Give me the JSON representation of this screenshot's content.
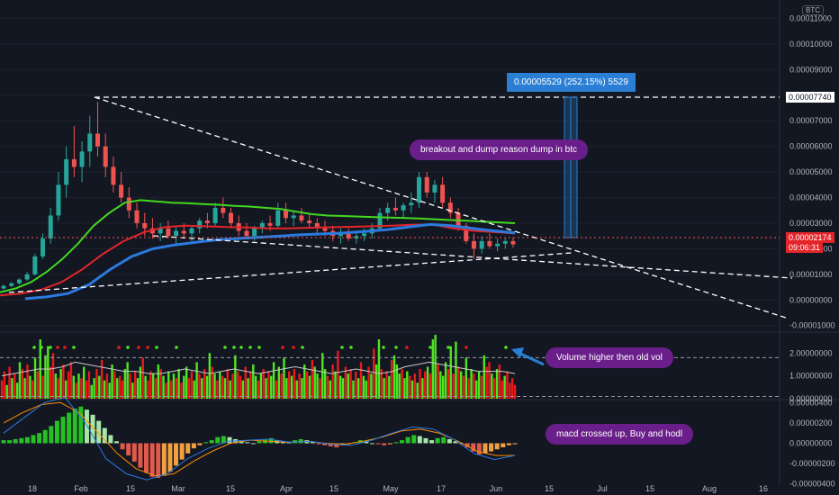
{
  "header": {
    "currency_badge": "BTC"
  },
  "price_axis": {
    "ticks": [
      "0.00011000",
      "0.00010000",
      "0.00009000",
      "0.00008000",
      "0.00007000",
      "0.00006000",
      "0.00005000",
      "0.00004000",
      "0.00003000",
      "0.00002000",
      "0.00001000",
      "0.00000000",
      "-0.00001000"
    ],
    "target_label": "0.00007740",
    "current_price": "0.00002174",
    "countdown": "09:06:31"
  },
  "volume_axis": {
    "ticks": [
      "2.00000000",
      "1.00000000",
      "0.00000000"
    ]
  },
  "macd_axis": {
    "ticks": [
      "0.00000400",
      "0.00000200",
      "0.00000000",
      "-0.00000200",
      "-0.00000400"
    ]
  },
  "time_axis": {
    "labels": [
      "18",
      "Feb",
      "15",
      "Mar",
      "15",
      "Apr",
      "15",
      "May",
      "17",
      "Jun",
      "15",
      "Jul",
      "15",
      "Aug",
      "16"
    ]
  },
  "annotations": {
    "measure": "0.00005529 (252.15%) 5529",
    "breakout": "breakout and dump reason dump in btc",
    "volume": "Volume higher then old vol",
    "macd": "macd crossed up, Buy and hodl"
  },
  "colors": {
    "background": "#131722",
    "up": "#26a69a",
    "down": "#ef5350",
    "vol_up": "#4ee620",
    "vol_down": "#e81a1a",
    "ema_green": "#43d820",
    "ema_red": "#e3252a",
    "ema_blue": "#2b7ae0",
    "callout": "#6a1e8a",
    "measure": "#2a7fd4"
  },
  "chart_data": [
    {
      "type": "candlestick",
      "pane": "price",
      "y_unit": "BTC",
      "ylim": [
        -1.15e-05,
        0.0001158
      ],
      "x_range": [
        "Jan 5",
        "Aug 31"
      ],
      "candles": [
        [
          4.5e-06,
          6e-06,
          4e-06,
          5.5e-06
        ],
        [
          5.5e-06,
          7e-06,
          5e-06,
          6.5e-06
        ],
        [
          6.5e-06,
          8.5e-06,
          6e-06,
          8e-06
        ],
        [
          8e-06,
          1.1e-05,
          7.5e-06,
          1e-05
        ],
        [
          1e-05,
          1.8e-05,
          9.5e-06,
          1.7e-05
        ],
        [
          1.7e-05,
          2.6e-05,
          1.6e-05,
          2.4e-05
        ],
        [
          2.4e-05,
          3.6e-05,
          2.2e-05,
          3.3e-05
        ],
        [
          3.3e-05,
          5e-05,
          3.1e-05,
          4.5e-05
        ],
        [
          4.5e-05,
          6e-05,
          4e-05,
          5.5e-05
        ],
        [
          5.5e-05,
          6.8e-05,
          4.8e-05,
          5.2e-05
        ],
        [
          5.2e-05,
          6.2e-05,
          4.6e-05,
          5.8e-05
        ],
        [
          5.8e-05,
          7.2e-05,
          5.2e-05,
          6.5e-05
        ],
        [
          6.5e-05,
          7.74e-05,
          5.6e-05,
          6e-05
        ],
        [
          6e-05,
          6.5e-05,
          4.8e-05,
          5.2e-05
        ],
        [
          5.2e-05,
          5.6e-05,
          4.2e-05,
          4.5e-05
        ],
        [
          4.5e-05,
          5e-05,
          3.8e-05,
          4e-05
        ],
        [
          4e-05,
          4.4e-05,
          3.2e-05,
          3.5e-05
        ],
        [
          3.5e-05,
          3.8e-05,
          2.8e-05,
          3e-05
        ],
        [
          3e-05,
          3.4e-05,
          2.5e-05,
          2.8e-05
        ],
        [
          2.8e-05,
          3.2e-05,
          2.4e-05,
          2.6e-05
        ],
        [
          2.6e-05,
          3e-05,
          2.3e-05,
          2.8e-05
        ],
        [
          2.8e-05,
          3.1e-05,
          2.4e-05,
          2.5e-05
        ],
        [
          2.5e-05,
          2.9e-05,
          2.2e-05,
          2.7e-05
        ],
        [
          2.7e-05,
          3e-05,
          2.4e-05,
          2.6e-05
        ],
        [
          2.6e-05,
          2.9e-05,
          2.3e-05,
          2.8e-05
        ],
        [
          2.8e-05,
          3.2e-05,
          2.6e-05,
          3.1e-05
        ],
        [
          3.1e-05,
          3.4e-05,
          2.8e-05,
          3e-05
        ],
        [
          3e-05,
          3.8e-05,
          2.9e-05,
          3.6e-05
        ],
        [
          3.6e-05,
          4e-05,
          3.2e-05,
          3.4e-05
        ],
        [
          3.4e-05,
          3.6e-05,
          2.8e-05,
          3e-05
        ],
        [
          3e-05,
          3.3e-05,
          2.5e-05,
          2.7e-05
        ],
        [
          2.7e-05,
          3e-05,
          2.4e-05,
          2.5e-05
        ],
        [
          2.5e-05,
          2.9e-05,
          2.3e-05,
          2.8e-05
        ],
        [
          2.8e-05,
          3.1e-05,
          2.6e-05,
          3e-05
        ],
        [
          3e-05,
          3.3e-05,
          2.7e-05,
          2.9e-05
        ],
        [
          2.9e-05,
          3.8e-05,
          2.8e-05,
          3.5e-05
        ],
        [
          3.5e-05,
          3.8e-05,
          3e-05,
          3.2e-05
        ],
        [
          3.2e-05,
          3.5e-05,
          2.9e-05,
          3.3e-05
        ],
        [
          3.3e-05,
          3.6e-05,
          3e-05,
          3.1e-05
        ],
        [
          3.1e-05,
          3.4e-05,
          2.8e-05,
          3e-05
        ],
        [
          3e-05,
          3.2e-05,
          2.6e-05,
          2.8e-05
        ],
        [
          2.8e-05,
          3.1e-05,
          2.5e-05,
          2.7e-05
        ],
        [
          2.7e-05,
          2.9e-05,
          2.3e-05,
          2.5e-05
        ],
        [
          2.5e-05,
          2.8e-05,
          2.2e-05,
          2.6e-05
        ],
        [
          2.6e-05,
          2.8e-05,
          2.3e-05,
          2.4e-05
        ],
        [
          2.4e-05,
          2.7e-05,
          2.2e-05,
          2.5e-05
        ],
        [
          2.5e-05,
          2.8e-05,
          2.3e-05,
          2.6e-05
        ],
        [
          2.6e-05,
          3e-05,
          2.4e-05,
          2.8e-05
        ],
        [
          2.8e-05,
          3.6e-05,
          2.7e-05,
          3.4e-05
        ],
        [
          3.4e-05,
          3.8e-05,
          3.1e-05,
          3.6e-05
        ],
        [
          3.6e-05,
          4e-05,
          3.3e-05,
          3.5e-05
        ],
        [
          3.5e-05,
          3.8e-05,
          3.2e-05,
          3.7e-05
        ],
        [
          3.7e-05,
          4.2e-05,
          3.4e-05,
          3.8e-05
        ],
        [
          3.8e-05,
          5e-05,
          3.6e-05,
          4.8e-05
        ],
        [
          4.8e-05,
          5e-05,
          4e-05,
          4.2e-05
        ],
        [
          4.2e-05,
          4.7e-05,
          3.8e-05,
          4.5e-05
        ],
        [
          4.5e-05,
          4.8e-05,
          3.6e-05,
          3.8e-05
        ],
        [
          3.8e-05,
          4e-05,
          3.2e-05,
          3.4e-05
        ],
        [
          3.4e-05,
          3.6e-05,
          2.7e-05,
          2.9e-05
        ],
        [
          2.9e-05,
          3e-05,
          2.2e-05,
          2.3e-05
        ],
        [
          2.3e-05,
          2.6e-05,
          1.6e-05,
          2e-05
        ],
        [
          2e-05,
          2.5e-05,
          1.8e-05,
          2.3e-05
        ],
        [
          2.3e-05,
          2.6e-05,
          2e-05,
          2.1e-05
        ],
        [
          2.1e-05,
          2.4e-05,
          1.9e-05,
          2.2e-05
        ],
        [
          2.2e-05,
          2.4e-05,
          2e-05,
          2.3e-05
        ],
        [
          2.3e-05,
          2.45e-05,
          2.05e-05,
          2.17e-05
        ]
      ],
      "series": [
        {
          "name": "",
          "color": "#43d820",
          "values": [
            3e-06,
            4.5e-06,
            7e-06,
            1.1e-05,
            1.6e-05,
            2.2e-05,
            2.9e-05,
            3.4e-05,
            3.8e-05,
            3.9e-05,
            3.85e-05,
            3.8e-05,
            3.78e-05,
            3.75e-05,
            3.72e-05,
            3.68e-05,
            3.65e-05,
            3.6e-05,
            3.55e-05,
            3.45e-05,
            3.35e-05,
            3.3e-05,
            3.28e-05,
            3.26e-05,
            3.24e-05,
            3.22e-05,
            3.2e-05,
            3.18e-05,
            3.15e-05,
            3.12e-05,
            3.09e-05,
            3.06e-05,
            3.03e-05,
            3e-05
          ]
        },
        {
          "name": "",
          "color": "#e3252a",
          "values": [
            1.8e-06,
            2.5e-06,
            4e-06,
            7e-06,
            1.2e-05,
            1.8e-05,
            2.3e-05,
            2.65e-05,
            2.85e-05,
            2.9e-05,
            2.88e-05,
            2.85e-05,
            2.83e-05,
            2.8e-05,
            2.8e-05,
            2.82e-05,
            2.84e-05,
            2.86e-05,
            2.88e-05,
            2.9e-05,
            2.94e-05,
            2.95e-05,
            2.8e-05,
            2.7e-05,
            2.65e-05,
            2.6e-05
          ]
        },
        {
          "name": "",
          "color": "#2b7ae0",
          "values": [
            5e-07,
            1.2e-06,
            2.5e-06,
            6e-06,
            1.2e-05,
            1.7e-05,
            2e-05,
            2.15e-05,
            2.25e-05,
            2.35e-05,
            2.4e-05,
            2.45e-05,
            2.5e-05,
            2.55e-05,
            2.58e-05,
            2.62e-05,
            2.68e-05,
            2.75e-05,
            2.85e-05,
            2.95e-05,
            2.9e-05,
            2.8e-05,
            2.7e-05,
            2.62e-05
          ]
        }
      ]
    },
    {
      "type": "bar",
      "pane": "volume",
      "ylim": [
        0,
        2.8
      ],
      "values": [
        0.8,
        1.2,
        0.6,
        1.4,
        0.9,
        1.1,
        0.7,
        1.6,
        1.3,
        0.9,
        1.5,
        1.0,
        0.8,
        1.8,
        1.2,
        2.6,
        1.0,
        1.9,
        2.3,
        1.4,
        2.0,
        1.1,
        0.9,
        1.3,
        1.5,
        0.8,
        1.2,
        1.6,
        1.0,
        0.7,
        1.1,
        0.9,
        1.4,
        0.8,
        1.2,
        0.6,
        0.9,
        1.3,
        1.0,
        1.7,
        0.8,
        1.1,
        0.7,
        1.5,
        1.2,
        0.9,
        1.0,
        0.8,
        1.3,
        1.6,
        1.1,
        0.7,
        1.2,
        0.9,
        1.4,
        1.8,
        1.0,
        0.8,
        1.2,
        1.1,
        0.9,
        1.5,
        1.3,
        1.0,
        0.7,
        1.2,
        0.8,
        1.1,
        0.9,
        1.3,
        0.7,
        1.0,
        1.4,
        0.9,
        1.2,
        0.8,
        1.6,
        1.1,
        0.9,
        1.3,
        1.0,
        2.0,
        1.4,
        1.1,
        0.8,
        1.2,
        1.0,
        0.9,
        1.3,
        0.8,
        1.1,
        1.9,
        1.2,
        1.0,
        0.8,
        1.4,
        0.9,
        1.2,
        1.5,
        1.0,
        0.8,
        1.1,
        1.3,
        0.9,
        1.2,
        1.0,
        1.6,
        0.8,
        1.4,
        1.1,
        1.8,
        0.9,
        1.2,
        1.0,
        1.3,
        0.8,
        1.1,
        0.9,
        1.5,
        1.2,
        1.0,
        1.7,
        1.4,
        1.1,
        0.9,
        2.0,
        1.3,
        1.0,
        0.8,
        1.5,
        1.2,
        2.1,
        1.0,
        0.9,
        1.4,
        1.1,
        1.3,
        0.8,
        1.2,
        0.9,
        1.6,
        1.0,
        0.8,
        1.4,
        1.1,
        2.2,
        1.5,
        2.6,
        1.3,
        0.9,
        1.2,
        1.0,
        1.7,
        1.9,
        1.5,
        1.1,
        1.3,
        0.9,
        1.2,
        1.0,
        0.8,
        1.1,
        0.7,
        1.3,
        0.9,
        1.2,
        1.4,
        1.1,
        2.6,
        2.8,
        1.5,
        1.2,
        1.0,
        1.6,
        1.3,
        2.3,
        1.1,
        2.5,
        1.4,
        1.2,
        1.0,
        1.8,
        0.9,
        1.3,
        1.1,
        0.8,
        1.2,
        1.0,
        1.9,
        1.4,
        1.6,
        1.1,
        0.9,
        1.3,
        1.5,
        0.8,
        1.0,
        1.2,
        0.7,
        0.9,
        0.6
      ],
      "colors": [
        "d",
        "d",
        "u",
        "d",
        "u",
        "d",
        "u",
        "u",
        "d",
        "u",
        "d",
        "u",
        "d",
        "u",
        "d",
        "u",
        "d",
        "u",
        "u",
        "d",
        "d",
        "u",
        "d",
        "u",
        "d",
        "u",
        "d",
        "d",
        "u",
        "d",
        "u",
        "d",
        "u",
        "d",
        "d",
        "u",
        "u",
        "d",
        "u",
        "d",
        "u",
        "d",
        "u",
        "u",
        "d",
        "u",
        "d",
        "d",
        "u",
        "u",
        "d",
        "u",
        "d",
        "u",
        "u",
        "d",
        "u",
        "d",
        "d",
        "u",
        "d",
        "u",
        "d",
        "u",
        "d",
        "u",
        "d",
        "u",
        "d",
        "u",
        "d",
        "u",
        "u",
        "d",
        "d",
        "u",
        "u",
        "d",
        "u",
        "d",
        "u",
        "u",
        "d",
        "u",
        "d",
        "u",
        "d",
        "u",
        "d",
        "u",
        "d",
        "u",
        "d",
        "d",
        "u",
        "d",
        "u",
        "d",
        "u",
        "u",
        "d",
        "u",
        "d",
        "u",
        "d",
        "u",
        "u",
        "d",
        "u",
        "d",
        "u",
        "u",
        "d",
        "u",
        "d",
        "u",
        "d",
        "u",
        "u",
        "d",
        "u",
        "d",
        "u",
        "u",
        "d",
        "u",
        "u",
        "d",
        "u",
        "d",
        "u",
        "d",
        "u",
        "u",
        "d",
        "u",
        "d",
        "u",
        "d",
        "u",
        "d",
        "u",
        "u",
        "d",
        "u",
        "d",
        "u",
        "u",
        "d",
        "u",
        "d",
        "u",
        "d",
        "u",
        "u",
        "u",
        "d",
        "u",
        "u",
        "d",
        "u",
        "d",
        "u",
        "d",
        "u",
        "d",
        "u",
        "d",
        "u",
        "u",
        "d",
        "u",
        "u",
        "u",
        "d",
        "u",
        "d",
        "u",
        "d",
        "u",
        "d",
        "u",
        "d",
        "u",
        "d",
        "u",
        "u",
        "d",
        "u",
        "d",
        "d",
        "u",
        "d",
        "u",
        "d",
        "d",
        "u",
        "d",
        "d",
        "d"
      ],
      "series": [
        {
          "name": "",
          "color": "#c8c8c8",
          "values": [
            1.0,
            1.1,
            1.2,
            1.3,
            1.3,
            1.4,
            1.6,
            1.5,
            1.4,
            1.3,
            1.2,
            1.2,
            1.1,
            1.1,
            1.2,
            1.3,
            1.2,
            1.1,
            1.2,
            1.3,
            1.2,
            1.1,
            1.2,
            1.3,
            1.4,
            1.3,
            1.2,
            1.1,
            1.2,
            1.3,
            1.2,
            1.1,
            1.2,
            1.4,
            1.5,
            1.6,
            1.5,
            1.4,
            1.3,
            1.2,
            1.2,
            1.2,
            1.1
          ]
        }
      ]
    },
    {
      "type": "bar",
      "pane": "macd",
      "ylim": [
        -4.2e-06,
        4.2e-06
      ],
      "values": [
        3e-07,
        3e-07,
        4e-07,
        5e-07,
        6e-07,
        8e-07,
        1e-06,
        1.3e-06,
        1.7e-06,
        2.2e-06,
        2.6e-06,
        3e-06,
        3.4e-06,
        3.6e-06,
        3.3e-06,
        2.8e-06,
        2.2e-06,
        1.5e-06,
        8e-07,
        2e-07,
        -6e-07,
        -1.2e-06,
        -1.8e-06,
        -2.4e-06,
        -2.9e-06,
        -3.3e-06,
        -3.4e-06,
        -3.2e-06,
        -2.8e-06,
        -2.2e-06,
        -1.6e-06,
        -1e-06,
        -5e-07,
        -2e-07,
        1e-07,
        3e-07,
        6e-07,
        7e-07,
        6e-07,
        4e-07,
        3e-07,
        1e-07,
        0.0,
        2e-07,
        4e-07,
        5e-07,
        3e-07,
        2e-07,
        1e-07,
        3e-07,
        4e-07,
        3e-07,
        1e-07,
        -1e-07,
        -2e-07,
        -3e-07,
        -4e-07,
        -2e-07,
        -1e-07,
        1e-07,
        3e-07,
        2e-07,
        0.0,
        -1e-07,
        -2e-07,
        -1e-07,
        1e-07,
        3e-07,
        6e-07,
        8e-07,
        7e-07,
        5e-07,
        3e-07,
        5e-07,
        6e-07,
        4e-07,
        2e-07,
        0.0,
        -4e-07,
        -8e-07,
        -1.1e-06,
        -1e-06,
        -8e-07,
        -6e-07,
        -4e-07,
        -2e-07,
        -1e-07
      ],
      "series": [
        {
          "name": "",
          "color": "#ff8c00",
          "values": [
            2e-06,
            3e-06,
            3.8e-06,
            4e-06,
            3e-06,
            1e-06,
            -1e-06,
            -2.5e-06,
            -3.2e-06,
            -3e-06,
            -1.8e-06,
            -8e-07,
            0.0,
            3e-07,
            2e-07,
            1e-07,
            2e-07,
            0.0,
            -1e-07,
            2e-07,
            6e-07,
            1.2e-06,
            1.4e-06,
            1e-06,
            2e-07,
            -8e-07,
            -1.2e-06,
            -1.2e-06
          ]
        },
        {
          "name": "",
          "color": "#2b7ae0",
          "values": [
            1e-06,
            2.5e-06,
            4e-06,
            4.5e-06,
            2e-06,
            -1.5e-06,
            -3e-06,
            -3.6e-06,
            -3e-06,
            -1.5e-06,
            -5e-07,
            2e-07,
            3e-07,
            4e-07,
            1e-07,
            2e-07,
            -1e-07,
            -2e-07,
            3e-07,
            1e-06,
            1.6e-06,
            1.4e-06,
            4e-07,
            -1e-06,
            -1.6e-06,
            -1.2e-06
          ]
        }
      ]
    }
  ]
}
